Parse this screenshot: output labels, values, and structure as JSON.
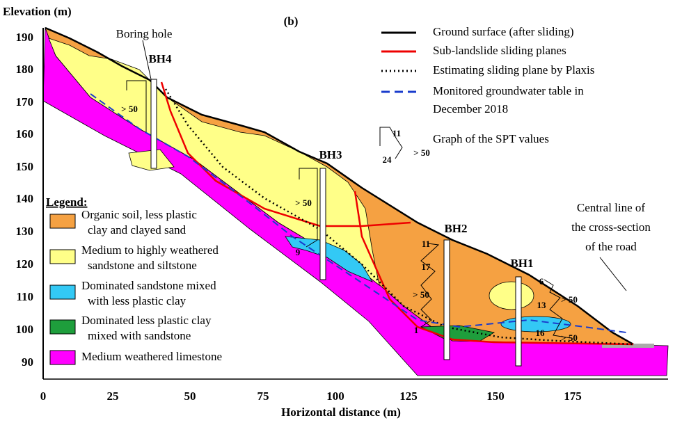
{
  "panel_label": "(b)",
  "axes": {
    "y_title": "Elevation (m)",
    "x_title": "Horizontal distance (m)",
    "yticks": [
      "190",
      "180",
      "170",
      "160",
      "150",
      "140",
      "130",
      "120",
      "110",
      "100",
      "90"
    ],
    "xticks": [
      "0",
      "25",
      "50",
      "75",
      "100",
      "125",
      "150",
      "175"
    ]
  },
  "annotations": {
    "boring_hole": "Boring hole",
    "central_line": [
      "Central line of",
      "the cross-section",
      "of the road"
    ]
  },
  "boreholes": [
    "BH4",
    "BH3",
    "BH2",
    "BH1"
  ],
  "spt_labels": [
    "> 50",
    "> 50",
    "9",
    "11",
    "17",
    "> 50",
    "1",
    "6",
    "13",
    "> 50",
    "16",
    "> 50"
  ],
  "key": {
    "items": [
      "Ground surface (after sliding)",
      "Sub-landslide sliding planes",
      "Estimating sliding plane by Plaxis",
      "Monitored groundwater table in",
      "December 2018"
    ],
    "spt": {
      "labels": [
        "11",
        "24",
        "> 50"
      ],
      "text": "Graph of the SPT values"
    }
  },
  "legend": {
    "title": "Legend:",
    "items": [
      [
        "Organic soil, less plastic",
        "clay and clayed sand"
      ],
      [
        "Medium to highly weathered",
        "sandstone and siltstone"
      ],
      [
        "Dominated sandstone mixed",
        "with less plastic clay"
      ],
      [
        "Dominated less plastic clay",
        "mixed with sandstone"
      ],
      [
        "Medium weathered limestone"
      ]
    ]
  }
}
